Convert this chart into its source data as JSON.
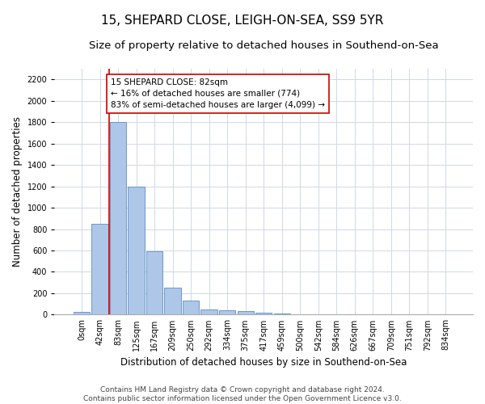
{
  "title": "15, SHEPARD CLOSE, LEIGH-ON-SEA, SS9 5YR",
  "subtitle": "Size of property relative to detached houses in Southend-on-Sea",
  "xlabel": "Distribution of detached houses by size in Southend-on-Sea",
  "ylabel": "Number of detached properties",
  "bar_labels": [
    "0sqm",
    "42sqm",
    "83sqm",
    "125sqm",
    "167sqm",
    "209sqm",
    "250sqm",
    "292sqm",
    "334sqm",
    "375sqm",
    "417sqm",
    "459sqm",
    "500sqm",
    "542sqm",
    "584sqm",
    "626sqm",
    "667sqm",
    "709sqm",
    "751sqm",
    "792sqm",
    "834sqm"
  ],
  "bar_values": [
    25,
    850,
    1800,
    1200,
    590,
    255,
    130,
    45,
    40,
    32,
    18,
    12,
    0,
    0,
    0,
    0,
    0,
    0,
    0,
    0,
    0
  ],
  "bar_color": "#aec6e8",
  "bar_edge_color": "#5a8fc0",
  "grid_color": "#d0d8e8",
  "annotation_box_color": "#cc0000",
  "annotation_line_color": "#cc0000",
  "ylim": [
    0,
    2300
  ],
  "yticks": [
    0,
    200,
    400,
    600,
    800,
    1000,
    1200,
    1400,
    1600,
    1800,
    2000,
    2200
  ],
  "annotation_text": "15 SHEPARD CLOSE: 82sqm\n← 16% of detached houses are smaller (774)\n83% of semi-detached houses are larger (4,099) →",
  "footer_line1": "Contains HM Land Registry data © Crown copyright and database right 2024.",
  "footer_line2": "Contains public sector information licensed under the Open Government Licence v3.0.",
  "title_fontsize": 11,
  "subtitle_fontsize": 9.5,
  "axis_label_fontsize": 8.5,
  "tick_fontsize": 7,
  "annotation_fontsize": 7.5,
  "footer_fontsize": 6.5
}
